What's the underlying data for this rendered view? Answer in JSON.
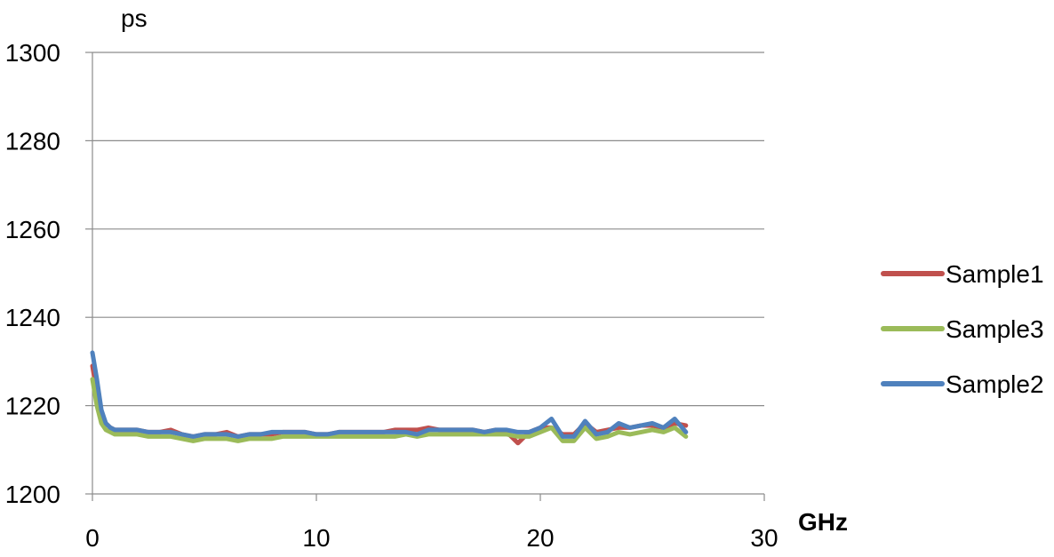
{
  "chart_data": {
    "type": "line",
    "title": "",
    "ylabel": "ps",
    "xlabel": "GHz",
    "xlim": [
      0,
      30
    ],
    "ylim": [
      1200,
      1300
    ],
    "x_ticks": [
      0,
      10,
      20,
      30
    ],
    "y_ticks": [
      1200,
      1220,
      1240,
      1260,
      1280,
      1300
    ],
    "x_tick_labels": [
      "0",
      "10",
      "20",
      "30"
    ],
    "y_tick_labels": [
      "1200",
      "1220",
      "1240",
      "1260",
      "1280",
      "1300"
    ],
    "grid": "horizontal",
    "legend": "right",
    "x": [
      0,
      0.2,
      0.4,
      0.6,
      0.8,
      1.0,
      1.5,
      2.0,
      2.5,
      3.0,
      3.5,
      4.0,
      4.5,
      5.0,
      5.5,
      6.0,
      6.5,
      7.0,
      7.5,
      8.0,
      8.5,
      9.0,
      9.5,
      10.0,
      10.5,
      11.0,
      11.5,
      12.0,
      12.5,
      13.0,
      13.5,
      14.0,
      14.5,
      15.0,
      15.5,
      16.0,
      16.5,
      17.0,
      17.5,
      18.0,
      18.5,
      19.0,
      19.5,
      20.0,
      20.5,
      21.0,
      21.5,
      22.0,
      22.5,
      23.0,
      23.5,
      24.0,
      24.5,
      25.0,
      25.5,
      26.0,
      26.5
    ],
    "series": [
      {
        "name": "Sample1",
        "color": "#c0504d",
        "values": [
          1229,
          1223,
          1218,
          1216,
          1215,
          1214.5,
          1214.5,
          1214.5,
          1214,
          1214,
          1214.5,
          1213.5,
          1213,
          1213.5,
          1213.5,
          1214,
          1213,
          1213.5,
          1213.5,
          1213.5,
          1214,
          1214,
          1214,
          1213.5,
          1213.5,
          1214,
          1214,
          1214,
          1214,
          1214,
          1214.5,
          1214.5,
          1214.5,
          1215,
          1214.5,
          1214.5,
          1214.5,
          1214.5,
          1214,
          1214.5,
          1214,
          1211.5,
          1214,
          1215,
          1215,
          1213.5,
          1213.5,
          1216,
          1214,
          1214.5,
          1215,
          1215,
          1215.5,
          1215.5,
          1215,
          1216,
          1215.5
        ]
      },
      {
        "name": "Sample3",
        "color": "#9bbb59",
        "values": [
          1226,
          1220,
          1216,
          1214.5,
          1214,
          1213.5,
          1213.5,
          1213.5,
          1213,
          1213,
          1213,
          1212.5,
          1212,
          1212.5,
          1212.5,
          1212.5,
          1212,
          1212.5,
          1212.5,
          1212.5,
          1213,
          1213,
          1213,
          1213,
          1213,
          1213,
          1213,
          1213,
          1213,
          1213,
          1213,
          1213.5,
          1213,
          1213.5,
          1213.5,
          1213.5,
          1213.5,
          1213.5,
          1213.5,
          1213.5,
          1213.5,
          1213,
          1213,
          1214,
          1215,
          1212,
          1212,
          1215,
          1212.5,
          1213,
          1214,
          1213.5,
          1214,
          1214.5,
          1214,
          1215,
          1213
        ]
      },
      {
        "name": "Sample2",
        "color": "#4f81bd",
        "values": [
          1232,
          1226,
          1219,
          1216,
          1215,
          1214.5,
          1214.5,
          1214.5,
          1214,
          1214,
          1214,
          1213.5,
          1213,
          1213.5,
          1213.5,
          1213.5,
          1213,
          1213.5,
          1213.5,
          1214,
          1214,
          1214,
          1214,
          1213.5,
          1213.5,
          1214,
          1214,
          1214,
          1214,
          1214,
          1214,
          1214,
          1213.5,
          1214.5,
          1214.5,
          1214.5,
          1214.5,
          1214.5,
          1214,
          1214.5,
          1214.5,
          1214,
          1214,
          1215,
          1217,
          1213,
          1213,
          1216.5,
          1213.5,
          1214,
          1216,
          1215,
          1215.5,
          1216,
          1215,
          1217,
          1214
        ]
      }
    ]
  }
}
